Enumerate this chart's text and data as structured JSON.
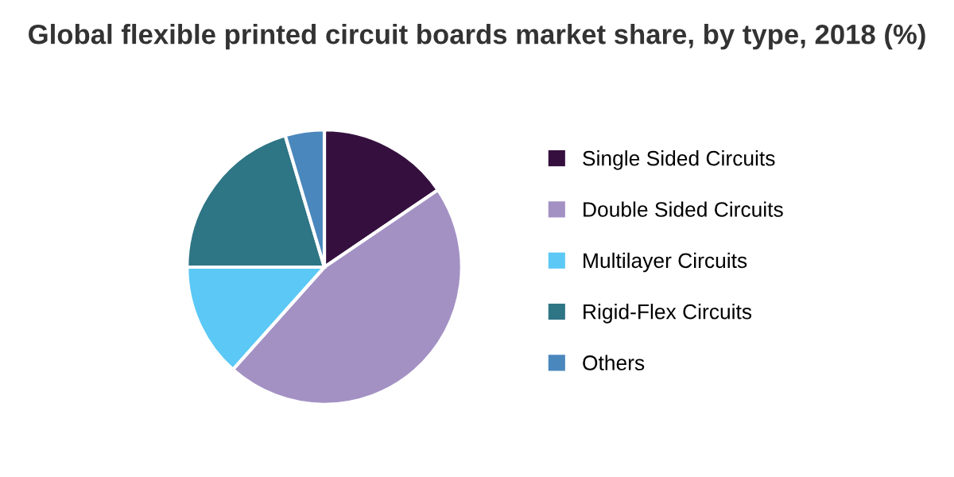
{
  "chart_data": {
    "type": "pie",
    "title": "Global flexible printed circuit boards market share, by type, 2018 (%)",
    "categories": [
      "Single Sided Circuits",
      "Double Sided Circuits",
      "Multilayer Circuits",
      "Rigid-Flex Circuits",
      "Others"
    ],
    "values": [
      15.5,
      46.1,
      13.4,
      20.4,
      4.6
    ],
    "colors": [
      "#35103f",
      "#a391c4",
      "#5bc8f5",
      "#2e7585",
      "#4a87bd"
    ],
    "legend": "right"
  }
}
